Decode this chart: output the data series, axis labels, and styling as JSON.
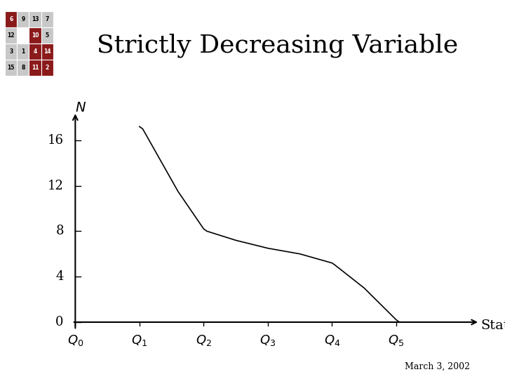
{
  "title": "Strictly Decreasing Variable",
  "title_fontsize": 26,
  "title_font": "serif",
  "ylabel": "N",
  "xlabel": "State",
  "yticks": [
    0,
    4,
    8,
    12,
    16
  ],
  "xtick_labels": [
    "$Q_0$",
    "$Q_1$",
    "$Q_2$",
    "$Q_3$",
    "$Q_4$",
    "$Q_5$"
  ],
  "xtick_positions": [
    0,
    1,
    2,
    3,
    4,
    5
  ],
  "xlim": [
    -0.15,
    6.3
  ],
  "ylim": [
    -1.0,
    19.0
  ],
  "line_x": [
    1.0,
    1.05,
    1.6,
    2.0,
    2.05,
    2.5,
    3.0,
    3.5,
    4.0,
    4.05,
    4.5,
    5.0,
    5.05
  ],
  "line_y": [
    17.2,
    17.0,
    11.5,
    8.2,
    8.0,
    7.2,
    6.5,
    6.0,
    5.2,
    5.0,
    3.0,
    0.2,
    0.0
  ],
  "line_color": "#000000",
  "line_width": 1.2,
  "background_color": "#ffffff",
  "date_text": "March 3, 2002",
  "date_fontsize": 9,
  "ylabel_fontsize": 14,
  "xlabel_fontsize": 14,
  "tick_fontsize": 13,
  "cell_colors": [
    [
      "#8B1A1A",
      "#c8c8c8",
      "#c8c8c8",
      "#c8c8c8"
    ],
    [
      "#c8c8c8",
      "#ffffff",
      "#8B1A1A",
      "#c8c8c8"
    ],
    [
      "#c8c8c8",
      "#c8c8c8",
      "#8B1A1A",
      "#8B1A1A"
    ],
    [
      "#c8c8c8",
      "#c8c8c8",
      "#8B1A1A",
      "#8B1A1A"
    ]
  ],
  "cell_values": [
    [
      "6",
      "9",
      "13",
      "7"
    ],
    [
      "12",
      "",
      "10",
      "5"
    ],
    [
      "3",
      "1",
      "4",
      "14"
    ],
    [
      "15",
      "8",
      "11",
      "2"
    ]
  ]
}
